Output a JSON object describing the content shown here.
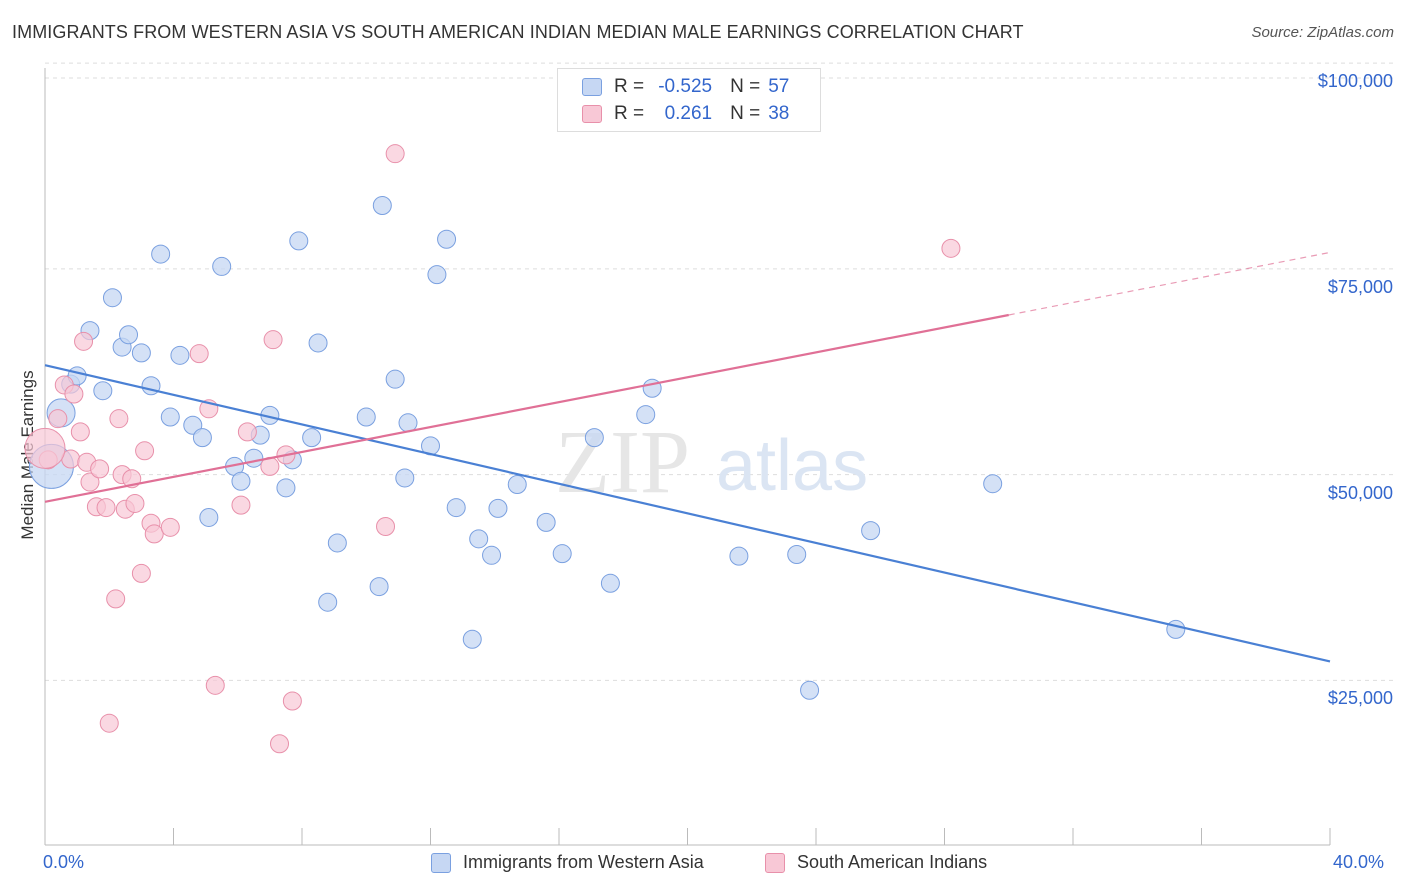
{
  "title": "IMMIGRANTS FROM WESTERN ASIA VS SOUTH AMERICAN INDIAN MEDIAN MALE EARNINGS CORRELATION CHART",
  "source": "Source: ZipAtlas.com",
  "watermark": {
    "zip": "ZIP",
    "atlas": "atlas"
  },
  "stats": [
    {
      "r_label": "R =",
      "r": "-0.525",
      "n_label": "N =",
      "n": "57",
      "color": "#4a80d4"
    },
    {
      "r_label": "R =",
      "r": "0.261",
      "n_label": "N =",
      "n": "38",
      "color": "#e07096"
    }
  ],
  "legend": [
    {
      "label": "Immigrants from Western Asia",
      "fill": "#c6d7f3",
      "stroke": "#7aa0e0"
    },
    {
      "label": "South American Indians",
      "fill": "#f8c8d6",
      "stroke": "#e890aa"
    }
  ],
  "x_min_label": "0.0%",
  "x_max_label": "40.0%",
  "y_tick_labels": [
    "$100,000",
    "$75,000",
    "$50,000",
    "$25,000"
  ],
  "chart_data": {
    "type": "scatter",
    "xlabel": "",
    "ylabel": "Median Male Earnings",
    "xlim": [
      0,
      40
    ],
    "ylim": [
      5000,
      105000
    ],
    "yticks": [
      100000,
      75000,
      50000,
      25000
    ],
    "series": [
      {
        "name": "Immigrants from Western Asia",
        "color": "#4a80d4",
        "fill": "#c6d7f3",
        "points": [
          [
            0.2,
            51000
          ],
          [
            0.5,
            57500
          ],
          [
            0.8,
            61000
          ],
          [
            1.0,
            62000
          ],
          [
            1.4,
            67500
          ],
          [
            1.8,
            60200
          ],
          [
            2.1,
            71500
          ],
          [
            2.4,
            65500
          ],
          [
            2.6,
            67000
          ],
          [
            3.0,
            64800
          ],
          [
            3.3,
            60800
          ],
          [
            3.6,
            76800
          ],
          [
            3.9,
            57000
          ],
          [
            4.2,
            64500
          ],
          [
            4.6,
            56000
          ],
          [
            4.9,
            54500
          ],
          [
            5.1,
            44800
          ],
          [
            5.5,
            75300
          ],
          [
            5.9,
            51000
          ],
          [
            6.1,
            49200
          ],
          [
            6.5,
            52000
          ],
          [
            6.7,
            54800
          ],
          [
            7.0,
            57200
          ],
          [
            7.5,
            48400
          ],
          [
            7.7,
            51800
          ],
          [
            7.9,
            78400
          ],
          [
            8.3,
            54500
          ],
          [
            8.5,
            66000
          ],
          [
            9.1,
            41700
          ],
          [
            8.8,
            34500
          ],
          [
            10.0,
            57000
          ],
          [
            10.4,
            36400
          ],
          [
            10.5,
            82700
          ],
          [
            10.9,
            61600
          ],
          [
            11.3,
            56300
          ],
          [
            11.2,
            49600
          ],
          [
            12.0,
            53500
          ],
          [
            12.2,
            74300
          ],
          [
            12.5,
            78600
          ],
          [
            12.8,
            46000
          ],
          [
            13.3,
            30000
          ],
          [
            13.5,
            42200
          ],
          [
            13.9,
            40200
          ],
          [
            14.1,
            45900
          ],
          [
            14.7,
            48800
          ],
          [
            15.6,
            44200
          ],
          [
            16.1,
            40400
          ],
          [
            17.1,
            54500
          ],
          [
            17.6,
            36800
          ],
          [
            18.7,
            57300
          ],
          [
            18.9,
            60500
          ],
          [
            21.6,
            40100
          ],
          [
            23.4,
            40300
          ],
          [
            23.8,
            23800
          ],
          [
            25.7,
            43200
          ],
          [
            29.5,
            48900
          ],
          [
            35.2,
            31200
          ]
        ]
      },
      {
        "name": "South American Indians",
        "color": "#e07096",
        "fill": "#f8c8d6",
        "points": [
          [
            0.1,
            51800
          ],
          [
            0.4,
            56800
          ],
          [
            0.6,
            60900
          ],
          [
            0.8,
            51900
          ],
          [
            0.9,
            59800
          ],
          [
            1.1,
            55200
          ],
          [
            1.2,
            66200
          ],
          [
            1.3,
            51500
          ],
          [
            1.4,
            49100
          ],
          [
            1.6,
            46100
          ],
          [
            1.7,
            50700
          ],
          [
            1.9,
            46000
          ],
          [
            2.0,
            19800
          ],
          [
            2.2,
            34900
          ],
          [
            2.3,
            56800
          ],
          [
            2.4,
            50000
          ],
          [
            2.5,
            45800
          ],
          [
            2.7,
            49500
          ],
          [
            2.8,
            46500
          ],
          [
            3.0,
            38000
          ],
          [
            3.1,
            52900
          ],
          [
            3.3,
            44100
          ],
          [
            3.4,
            42800
          ],
          [
            3.9,
            43600
          ],
          [
            4.8,
            64700
          ],
          [
            5.1,
            58000
          ],
          [
            5.3,
            24400
          ],
          [
            6.1,
            46300
          ],
          [
            6.3,
            55200
          ],
          [
            7.0,
            51000
          ],
          [
            7.1,
            66400
          ],
          [
            7.3,
            17300
          ],
          [
            7.5,
            52400
          ],
          [
            7.7,
            22500
          ],
          [
            10.6,
            43700
          ],
          [
            10.9,
            89000
          ],
          [
            28.2,
            77500
          ],
          [
            0.0,
            53200
          ]
        ]
      }
    ],
    "trendlines": [
      {
        "series": "Immigrants from Western Asia",
        "x": [
          0,
          40
        ],
        "y": [
          63300,
          27300
        ],
        "style": "solid"
      },
      {
        "series": "South American Indians",
        "x_solid": [
          0,
          30
        ],
        "y_solid": [
          46700,
          69400
        ],
        "x_dashed": [
          30,
          40
        ],
        "y_dashed": [
          69400,
          77000
        ]
      }
    ]
  }
}
